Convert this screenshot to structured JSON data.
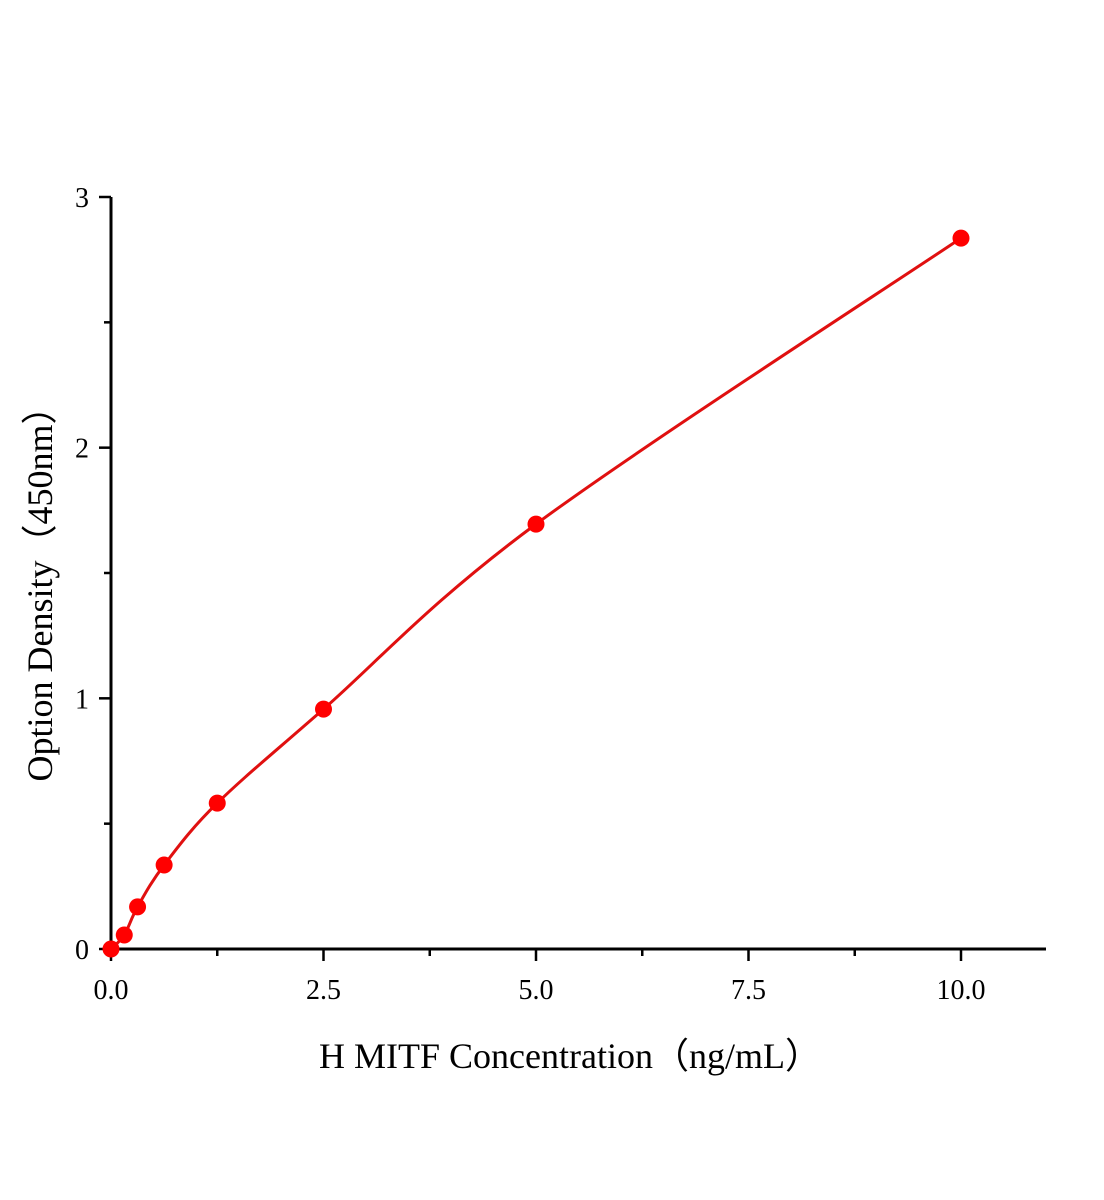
{
  "chart_data": {
    "type": "scatter",
    "title": "",
    "xlabel": "H MITF Concentration（ng/mL）",
    "ylabel": "Option Density（450nm）",
    "xlim": [
      0,
      11
    ],
    "ylim": [
      0,
      3
    ],
    "x_ticks": [
      0,
      2.5,
      5,
      7.5,
      10
    ],
    "x_tick_labels": [
      "0.0",
      "2.5",
      "5.0",
      "7.5",
      "10.0"
    ],
    "y_ticks": [
      0,
      1,
      2,
      3
    ],
    "y_tick_labels": [
      "0",
      "1",
      "2",
      "3"
    ],
    "grid": false,
    "color": "#ff0000",
    "line_color": "#e01010",
    "fit_curve": true,
    "series": [
      {
        "x": [
          0,
          0.156,
          0.3125,
          0.625,
          1.25,
          2.5,
          5,
          10
        ],
        "y": [
          0.0,
          0.056,
          0.168,
          0.335,
          0.582,
          0.957,
          1.695,
          2.836
        ]
      }
    ]
  }
}
